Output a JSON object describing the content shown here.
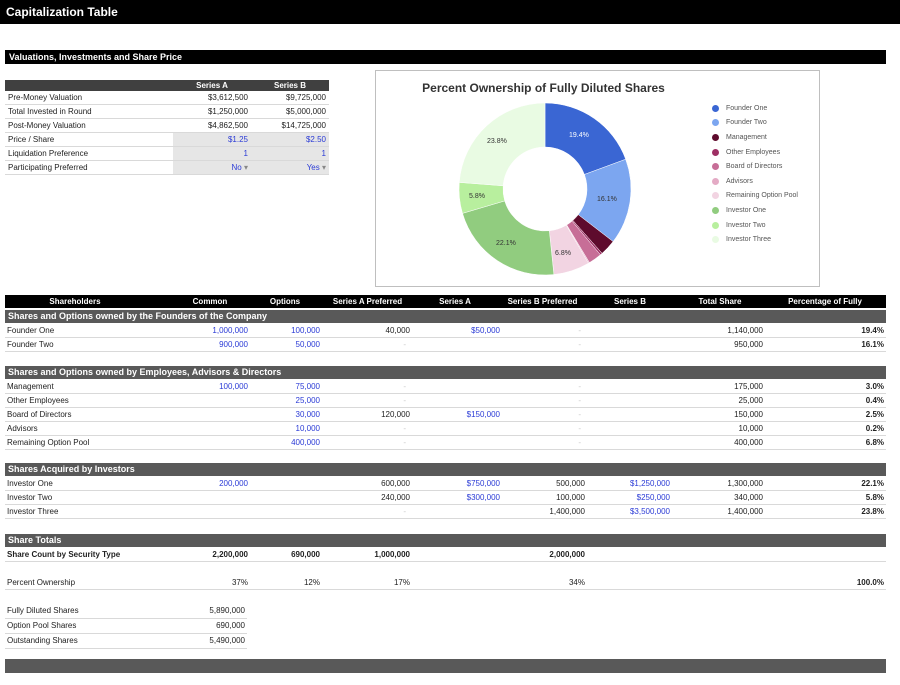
{
  "page_title": "Capitalization Table",
  "section_valuations": "Valuations, Investments and Share Price",
  "valuation_table": {
    "headers": [
      "",
      "Series A",
      "Series B"
    ],
    "rows": [
      {
        "label": "Pre-Money Valuation",
        "a": "$3,612,500",
        "b": "$9,725,000"
      },
      {
        "label": "Total Invested in Round",
        "a": "$1,250,000",
        "b": "$5,000,000"
      },
      {
        "label": "Post-Money Valuation",
        "a": "$4,862,500",
        "b": "$14,725,000"
      },
      {
        "label": "Price / Share",
        "a": "$1.25",
        "b": "$2.50"
      },
      {
        "label": "Liquidation Preference",
        "a": "1",
        "b": "1"
      },
      {
        "label": "Participating Preferred",
        "a": "No",
        "b": "Yes"
      }
    ]
  },
  "chart": {
    "title": "Percent Ownership of Fully Diluted Shares",
    "labels": {
      "founder_one": "19.4%",
      "founder_two": "16.1%",
      "investor_one": "22.1%",
      "investor_two": "5.8%",
      "investor_three": "23.8%",
      "remaining": "6.8%"
    }
  },
  "chart_data": {
    "type": "pie",
    "title": "Percent Ownership of Fully Diluted Shares",
    "legend_position": "right",
    "categories": [
      "Founder One",
      "Founder Two",
      "Management",
      "Other Employees",
      "Board of Directors",
      "Advisors",
      "Remaining Option Pool",
      "Investor One",
      "Investor Two",
      "Investor Three"
    ],
    "values": [
      19.4,
      16.1,
      3.0,
      0.4,
      2.5,
      0.2,
      6.8,
      22.1,
      5.8,
      23.8
    ],
    "colors": [
      "#3a66d3",
      "#7ca6f0",
      "#5e0b2d",
      "#9e2f64",
      "#c76e97",
      "#e4abc5",
      "#f2d4e2",
      "#91cc7f",
      "#b8ef9e",
      "#e9fbe3"
    ]
  },
  "table": {
    "headers": [
      "Shareholders",
      "Common",
      "Options",
      "Series A Preferred",
      "Series A",
      "Series B Preferred",
      "Series B",
      "Total Share",
      "Percentage of Fully"
    ],
    "group_founders": "Shares and Options owned by the Founders of the Company",
    "group_employees": "Shares and Options owned by Employees, Advisors & Directors",
    "group_investors": "Shares Acquired by Investors",
    "group_totals": "Share Totals",
    "dash": "-",
    "founders": [
      {
        "name": "Founder One",
        "common": "1,000,000",
        "options": "100,000",
        "sap": "40,000",
        "sa": "$50,000",
        "sbp": "-",
        "sb": "",
        "total": "1,140,000",
        "pct": "19.4%"
      },
      {
        "name": "Founder Two",
        "common": "900,000",
        "options": "50,000",
        "sap": "-",
        "sa": "",
        "sbp": "-",
        "sb": "",
        "total": "950,000",
        "pct": "16.1%"
      }
    ],
    "employees": [
      {
        "name": "Management",
        "common": "100,000",
        "options": "75,000",
        "sap": "-",
        "sa": "",
        "sbp": "-",
        "sb": "",
        "total": "175,000",
        "pct": "3.0%"
      },
      {
        "name": "Other Employees",
        "common": "",
        "options": "25,000",
        "sap": "-",
        "sa": "",
        "sbp": "-",
        "sb": "",
        "total": "25,000",
        "pct": "0.4%"
      },
      {
        "name": "Board of Directors",
        "common": "",
        "options": "30,000",
        "sap": "120,000",
        "sa": "$150,000",
        "sbp": "-",
        "sb": "",
        "total": "150,000",
        "pct": "2.5%"
      },
      {
        "name": "Advisors",
        "common": "",
        "options": "10,000",
        "sap": "-",
        "sa": "",
        "sbp": "-",
        "sb": "",
        "total": "10,000",
        "pct": "0.2%"
      },
      {
        "name": "Remaining Option Pool",
        "common": "",
        "options": "400,000",
        "sap": "-",
        "sa": "",
        "sbp": "-",
        "sb": "",
        "total": "400,000",
        "pct": "6.8%"
      }
    ],
    "investors": [
      {
        "name": "Investor One",
        "common": "200,000",
        "options": "",
        "sap": "600,000",
        "sa": "$750,000",
        "sbp": "500,000",
        "sb": "$1,250,000",
        "total": "1,300,000",
        "pct": "22.1%"
      },
      {
        "name": "Investor Two",
        "common": "",
        "options": "",
        "sap": "240,000",
        "sa": "$300,000",
        "sbp": "100,000",
        "sb": "$250,000",
        "total": "340,000",
        "pct": "5.8%"
      },
      {
        "name": "Investor Three",
        "common": "",
        "options": "",
        "sap": "-",
        "sa": "",
        "sbp": "1,400,000",
        "sb": "$3,500,000",
        "total": "1,400,000",
        "pct": "23.8%"
      }
    ],
    "share_count": {
      "label": "Share Count by Security Type",
      "common": "2,200,000",
      "options": "690,000",
      "sap": "1,000,000",
      "sbp": "2,000,000"
    },
    "percent_ownership": {
      "label": "Percent Ownership",
      "common": "37%",
      "options": "12%",
      "sap": "17%",
      "sbp": "34%",
      "total": "100.0%"
    },
    "summary": [
      {
        "label": "Fully Diluted Shares",
        "value": "5,890,000"
      },
      {
        "label": "Option Pool Shares",
        "value": "690,000"
      },
      {
        "label": "Outstanding Shares",
        "value": "5,490,000"
      }
    ]
  },
  "colors": {
    "header_black": "#000000",
    "section_grey": "#595959",
    "input_blue": "#2b3bd6"
  }
}
